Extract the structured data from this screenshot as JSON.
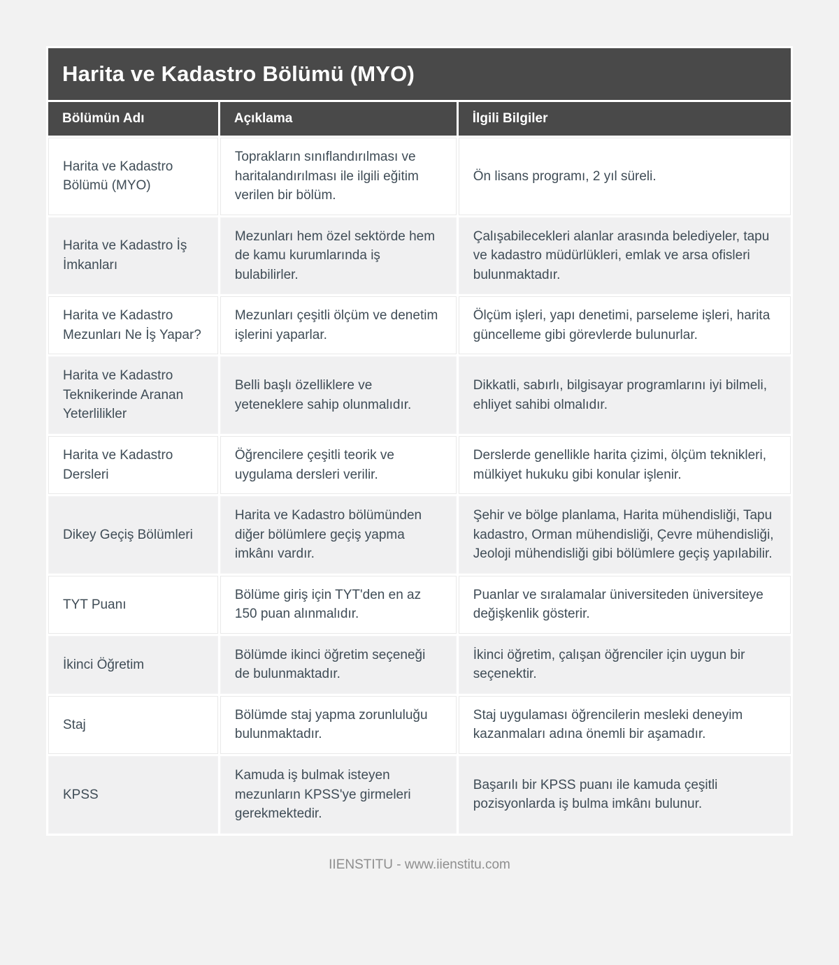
{
  "page": {
    "title": "Harita ve Kadastro Bölümü (MYO)",
    "footer": "IIENSTITU - www.iienstitu.com"
  },
  "table": {
    "columns": [
      "Bölümün Adı",
      "Açıklama",
      "İlgili Bilgiler"
    ],
    "rows": [
      {
        "name": "Harita ve Kadastro Bölümü (MYO)",
        "aciklama": "Toprakların sınıflandırılması ve haritalandırılması ile ilgili eğitim verilen bir bölüm.",
        "bilgi": "Ön lisans programı, 2 yıl süreli."
      },
      {
        "name": "Harita ve Kadastro İş İmkanları",
        "aciklama": "Mezunları hem özel sektörde hem de kamu kurumlarında iş bulabilirler.",
        "bilgi": "Çalışabilecekleri alanlar arasında belediyeler, tapu ve kadastro müdürlükleri, emlak ve arsa ofisleri bulunmaktadır."
      },
      {
        "name": "Harita ve Kadastro Mezunları Ne İş Yapar?",
        "aciklama": "Mezunları çeşitli ölçüm ve denetim işlerini yaparlar.",
        "bilgi": "Ölçüm işleri, yapı denetimi, parseleme işleri, harita güncelleme gibi görevlerde bulunurlar."
      },
      {
        "name": "Harita ve Kadastro Teknikerinde Aranan Yeterlilikler",
        "aciklama": "Belli başlı özelliklere ve yeteneklere sahip olunmalıdır.",
        "bilgi": "Dikkatli, sabırlı, bilgisayar programlarını iyi bilmeli, ehliyet sahibi olmalıdır."
      },
      {
        "name": "Harita ve Kadastro Dersleri",
        "aciklama": "Öğrencilere çeşitli teorik ve uygulama dersleri verilir.",
        "bilgi": "Derslerde genellikle harita çizimi, ölçüm teknikleri, mülkiyet hukuku gibi konular işlenir."
      },
      {
        "name": "Dikey Geçiş Bölümleri",
        "aciklama": "Harita ve Kadastro bölümünden diğer bölümlere geçiş yapma imkânı vardır.",
        "bilgi": "Şehir ve bölge planlama, Harita mühendisliği, Tapu kadastro, Orman mühendisliği, Çevre mühendisliği, Jeoloji mühendisliği gibi bölümlere geçiş yapılabilir."
      },
      {
        "name": "TYT Puanı",
        "aciklama": "Bölüme giriş için TYT'den en az 150 puan alınmalıdır.",
        "bilgi": "Puanlar ve sıralamalar üniversiteden üniversiteye değişkenlik gösterir."
      },
      {
        "name": "İkinci Öğretim",
        "aciklama": "Bölümde ikinci öğretim seçeneği de bulunmaktadır.",
        "bilgi": "İkinci öğretim, çalışan öğrenciler için uygun bir seçenektir."
      },
      {
        "name": "Staj",
        "aciklama": "Bölümde staj yapma zorunluluğu bulunmaktadır.",
        "bilgi": "Staj uygulaması öğrencilerin mesleki deneyim kazanmaları adına önemli bir aşamadır."
      },
      {
        "name": "KPSS",
        "aciklama": "Kamuda iş bulmak isteyen mezunların KPSS'ye girmeleri gerekmektedir.",
        "bilgi": "Başarılı bir KPSS puanı ile kamuda çeşitli pozisyonlarda iş bulma imkânı bulunur."
      }
    ]
  },
  "colors": {
    "header_bg": "#494949",
    "header_text": "#ffffff",
    "body_text": "#3f4c56",
    "row_bg": "#ffffff",
    "row_alt_bg": "#f0f0f1",
    "cell_border": "#e9e9e9",
    "page_bg": "#f2f2f2",
    "footer_text": "#8e8e8e"
  }
}
